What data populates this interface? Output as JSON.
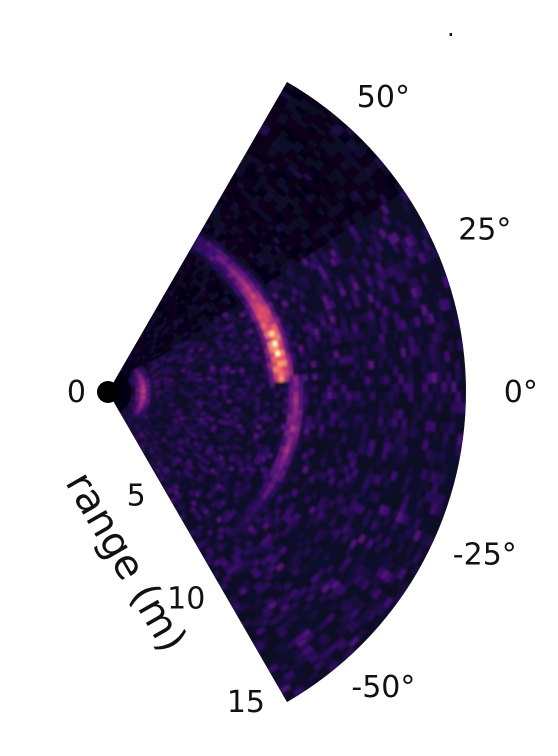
{
  "chart_data": {
    "type": "heatmap",
    "projection": "polar-sector",
    "title": "",
    "ylabel": "range (m)",
    "theta_range_deg": [
      -60,
      60
    ],
    "r_range": [
      0,
      15
    ],
    "theta_ticks": [
      {
        "value": 50,
        "label": "50°"
      },
      {
        "value": 25,
        "label": "25°"
      },
      {
        "value": 0,
        "label": "0°"
      },
      {
        "value": -25,
        "label": "-25°"
      },
      {
        "value": -50,
        "label": "-50°"
      }
    ],
    "r_ticks": [
      {
        "value": 0,
        "label": "0"
      },
      {
        "value": 5,
        "label": "5"
      },
      {
        "value": 10,
        "label": "10"
      },
      {
        "value": 15,
        "label": "15"
      }
    ],
    "colormap": "magma",
    "background_color": "#0d0826",
    "features": [
      {
        "kind": "bright-arc",
        "r_center": 7.3,
        "r_width": 0.5,
        "theta_from": 3,
        "theta_to": 60,
        "peak": 0.95,
        "peak_theta": 12
      },
      {
        "kind": "bright-arc",
        "r_center": 7.9,
        "r_width": 0.4,
        "theta_from": -50,
        "theta_to": 5,
        "peak": 0.55,
        "peak_theta": -10
      },
      {
        "kind": "near-ring",
        "r_center": 1.5,
        "r_width": 0.3,
        "theta_from": -40,
        "theta_to": 40,
        "peak": 0.65,
        "peak_theta": 0
      }
    ]
  }
}
